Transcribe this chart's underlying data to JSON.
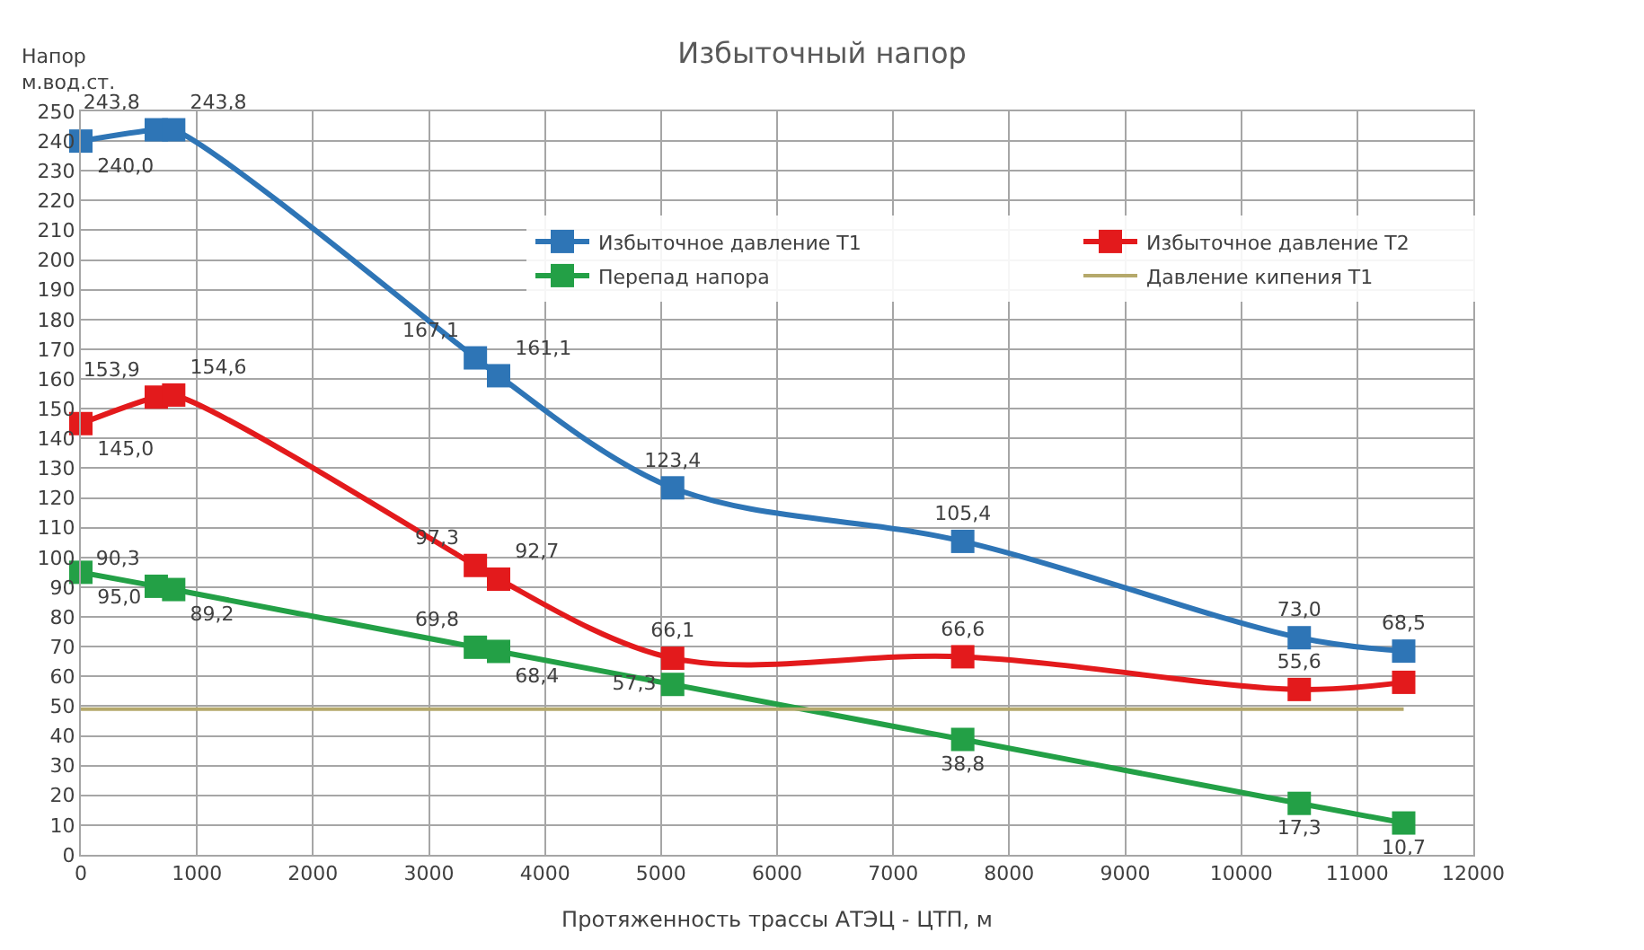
{
  "chart_data": {
    "type": "line",
    "title": "Избыточный напор",
    "xlabel": "Протяженность трассы АТЭЦ - ЦТП, м",
    "ylabel": "Напор\nм.вод.ст.",
    "x": [
      0,
      650,
      800,
      3400,
      3600,
      5100,
      7600,
      10500,
      11400
    ],
    "series": [
      {
        "name": "Избыточное давление Т1",
        "color": "#2e75b6",
        "values": [
          240.0,
          243.8,
          243.8,
          167.1,
          161.1,
          123.4,
          105.4,
          73.0,
          68.5
        ],
        "value_labels": [
          "240,0",
          "243,8",
          "243,8",
          "167,1",
          "161,1",
          "123,4",
          "105,4",
          "73,0",
          "68,5"
        ]
      },
      {
        "name": "Избыточное давление Т2",
        "color": "#e31a1c",
        "values": [
          145.0,
          153.9,
          154.6,
          97.3,
          92.7,
          66.1,
          66.6,
          55.6,
          58.0
        ],
        "value_labels": [
          "145,0",
          "153,9",
          "154,6",
          "97,3",
          "92,7",
          "66,1",
          "66,6",
          "55,6",
          null
        ]
      },
      {
        "name": "Перепад напора",
        "color": "#23a046",
        "values": [
          95.0,
          90.3,
          89.2,
          69.8,
          68.4,
          57.3,
          38.8,
          17.3,
          10.7
        ],
        "value_labels": [
          "95,0",
          "90,3",
          "89,2",
          "69,8",
          "68,4",
          "57,3",
          "38,8",
          "17,3",
          "10,7"
        ]
      },
      {
        "name": "Давление кипения Т1",
        "color": "#b5a96b",
        "marker": "none",
        "x": [
          0,
          11400
        ],
        "values": [
          49,
          49
        ]
      }
    ],
    "xlim": [
      0,
      12000
    ],
    "xticks": [
      0,
      1000,
      2000,
      3000,
      4000,
      5000,
      6000,
      7000,
      8000,
      9000,
      10000,
      11000,
      12000
    ],
    "ylim": [
      0,
      250
    ],
    "yticks": [
      0,
      10,
      20,
      30,
      40,
      50,
      60,
      70,
      80,
      90,
      100,
      110,
      120,
      130,
      140,
      150,
      160,
      170,
      180,
      190,
      200,
      210,
      220,
      230,
      240,
      250
    ],
    "grid": true,
    "legend": "top",
    "marker": "square",
    "line_style": "solid"
  }
}
